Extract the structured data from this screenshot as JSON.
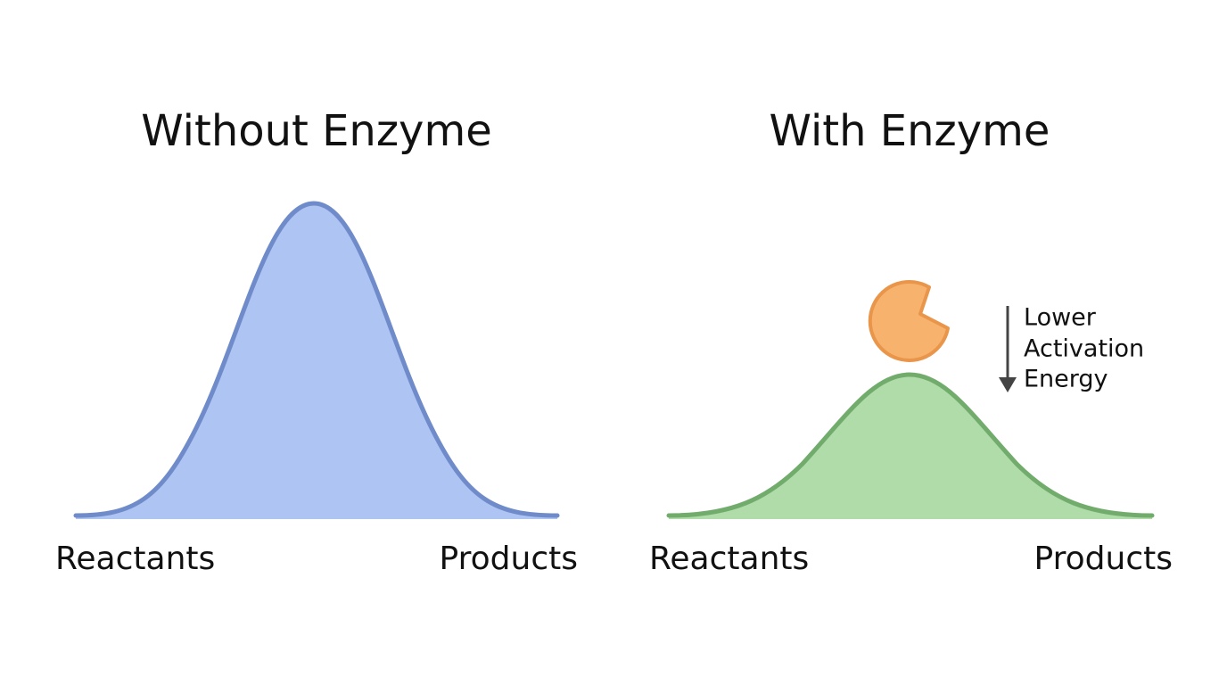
{
  "panels": [
    {
      "title": "Without Enzyme",
      "start_label": "Reactants",
      "end_label": "Products"
    },
    {
      "title": "With Enzyme",
      "start_label": "Reactants",
      "end_label": "Products",
      "annotation": [
        "Lower",
        "Activation",
        "Energy"
      ]
    }
  ]
}
